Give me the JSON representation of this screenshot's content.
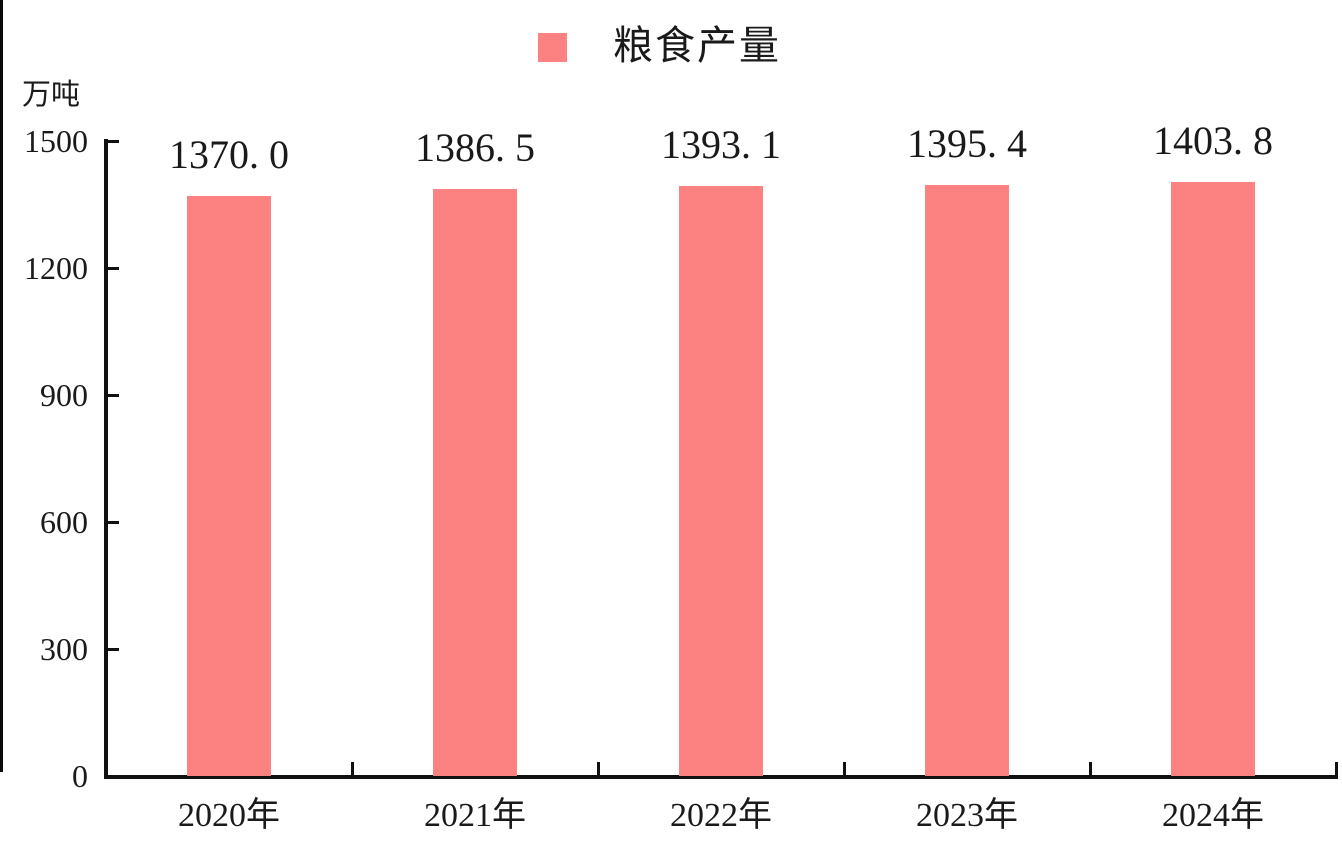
{
  "chart_data": {
    "type": "bar",
    "legend": {
      "label": "粮食产量",
      "position": "top-center"
    },
    "y_axis_unit": "万吨",
    "categories": [
      "2020年",
      "2021年",
      "2022年",
      "2023年",
      "2024年"
    ],
    "series": [
      {
        "name": "粮食产量",
        "values": [
          1370.0,
          1386.5,
          1393.1,
          1395.4,
          1403.8
        ]
      }
    ],
    "values": [
      1370.0,
      1386.5,
      1393.1,
      1395.4,
      1403.8
    ],
    "value_labels": [
      "1370. 0",
      "1386. 5",
      "1393. 1",
      "1395. 4",
      "1403. 8"
    ],
    "y_ticks": [
      0,
      300,
      600,
      900,
      1200,
      1500
    ],
    "y_tick_labels": [
      "0",
      "300",
      "600",
      "900",
      "1200",
      "1500"
    ],
    "ylim": [
      0,
      1500
    ],
    "grid": false,
    "colors": {
      "bar": "#FC8282",
      "axis": "#111111",
      "text": "#1A1A1A",
      "background": "#FFFFFF"
    }
  }
}
